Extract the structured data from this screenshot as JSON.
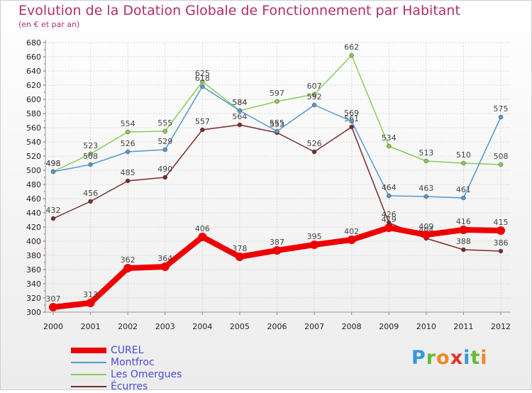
{
  "chart_data": {
    "type": "line",
    "title": "Evolution de la Dotation Globale de Fonctionnement par Habitant",
    "subtitle": "(en € et par an)",
    "xlabel": "",
    "ylabel": "",
    "ylim": [
      300,
      680
    ],
    "yticks": [
      300,
      320,
      340,
      360,
      380,
      400,
      420,
      440,
      460,
      480,
      500,
      520,
      540,
      560,
      580,
      600,
      620,
      640,
      660,
      680
    ],
    "grid": true,
    "categories": [
      "2000",
      "2001",
      "2002",
      "2003",
      "2004",
      "2005",
      "2006",
      "2007",
      "2008",
      "2009",
      "2010",
      "2011",
      "2012"
    ],
    "series": [
      {
        "name": "Écurres",
        "color": "#7a2a2a",
        "values": [
          432,
          456,
          485,
          490,
          557,
          564,
          553,
          526,
          561,
          426,
          404,
          388,
          386
        ]
      },
      {
        "name": "Les Omergues",
        "color": "#88cc55",
        "values": [
          498,
          523,
          554,
          555,
          625,
          584,
          597,
          607,
          662,
          534,
          513,
          510,
          508
        ]
      },
      {
        "name": "Montfroc",
        "color": "#5599cc",
        "values": [
          498,
          508,
          526,
          529,
          618,
          584,
          555,
          592,
          569,
          464,
          463,
          461,
          575
        ]
      },
      {
        "name": "CUREL",
        "color": "#ee0000",
        "values": [
          307,
          313,
          362,
          364,
          406,
          378,
          387,
          395,
          402,
          419,
          409,
          416,
          415
        ]
      }
    ],
    "legend": {
      "placement": "bottom-left",
      "entries": [
        "CUREL",
        "Montfroc",
        "Les Omergues",
        "Écurres"
      ]
    }
  },
  "logo": {
    "letters": [
      "P",
      "r",
      "o",
      "x",
      "i",
      "t",
      "i"
    ]
  }
}
